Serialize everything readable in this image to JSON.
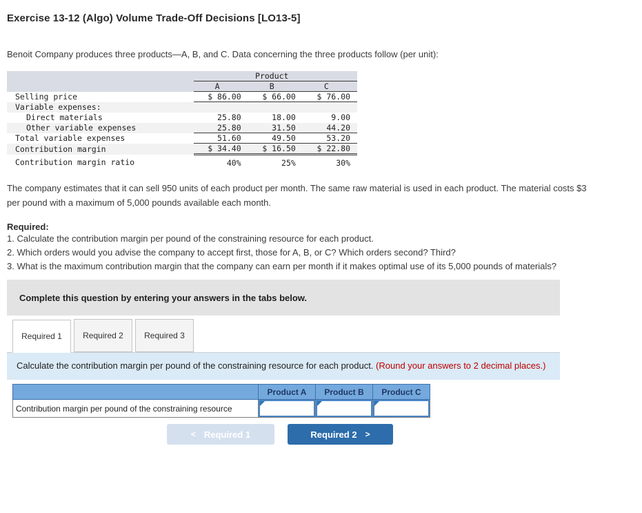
{
  "header": {
    "title": "Exercise 13-12 (Algo) Volume Trade-Off Decisions [LO13-5]",
    "intro": "Benoit Company produces three products—A, B, and C. Data concerning the three products follow (per unit):"
  },
  "product_table": {
    "group_header": "Product",
    "col_a": "A",
    "col_b": "B",
    "col_c": "C",
    "rows": [
      {
        "label": "Selling price",
        "a": "$ 86.00",
        "b": "$ 66.00",
        "c": "$ 76.00"
      },
      {
        "label": "Variable expenses:",
        "a": "",
        "b": "",
        "c": ""
      },
      {
        "label": "Direct materials",
        "a": "25.80",
        "b": "18.00",
        "c": "9.00"
      },
      {
        "label": "Other variable expenses",
        "a": "25.80",
        "b": "31.50",
        "c": "44.20"
      },
      {
        "label": "Total variable expenses",
        "a": "51.60",
        "b": "49.50",
        "c": "53.20"
      },
      {
        "label": "Contribution margin",
        "a": "$ 34.40",
        "b": "$ 16.50",
        "c": "$ 22.80"
      },
      {
        "label": "Contribution margin ratio",
        "a": "40%",
        "b": "25%",
        "c": "30%"
      }
    ]
  },
  "body_text": {
    "paragraph": "The company estimates that it can sell 950 units of each product per month. The same raw material is used in each product. The material costs $3 per pound with a maximum of 5,000 pounds available each month.",
    "required_label": "Required:",
    "required_items": {
      "0": "1. Calculate the contribution margin per pound of the constraining resource for each product.",
      "1": "2. Which orders would you advise the company to accept first, those for A, B, or C? Which orders second? Third?",
      "2": "3. What is the maximum contribution margin that the company can earn per month if it makes optimal use of its 5,000 pounds of materials?"
    }
  },
  "panel": {
    "banner": "Complete this question by entering your answers in the tabs below.",
    "tabs": {
      "0": "Required 1",
      "1": "Required 2",
      "2": "Required 3"
    },
    "active_tab": "Required 1",
    "instruction": "Calculate the contribution margin per pound of the constraining resource for each product. ",
    "instruction_note": "(Round your answers to 2 decimal places.)"
  },
  "answer_table": {
    "columns": {
      "0": "Product A",
      "1": "Product B",
      "2": "Product C"
    },
    "row_label": "Contribution margin per pound of the constraining resource",
    "values": {
      "0": "",
      "1": "",
      "2": ""
    }
  },
  "nav": {
    "prev_chevron": "<",
    "prev_label": "Required 1",
    "next_label": "Required 2",
    "next_chevron": ">"
  },
  "colors": {
    "table_header_bg": "#d9dce4",
    "shaded_row_bg": "#f2f2f2",
    "answer_header_bg": "#74a9dd",
    "answer_header_text": "#1f3864",
    "input_border": "#4a86c8",
    "input_marker": "#2e75b6",
    "instruction_bg": "#daeaf6",
    "instruction_note_text": "#c00000",
    "banner_bg": "#e3e3e3",
    "next_button_bg": "#2d6dab",
    "prev_button_bg": "#d5e0ef"
  }
}
